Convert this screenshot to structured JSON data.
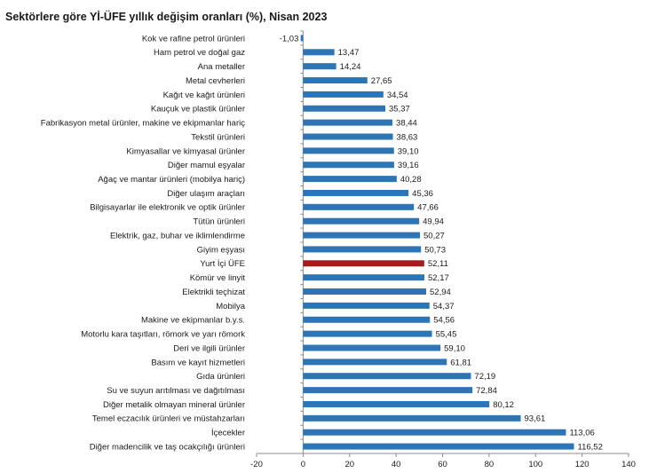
{
  "chart_data": {
    "type": "bar",
    "orientation": "horizontal",
    "title": "Sektörlere göre Yİ-ÜFE yıllık değişim oranları (%), Nisan 2023",
    "categories": [
      "Kok ve rafine petrol ürünleri",
      "Ham petrol ve doğal gaz",
      "Ana metaller",
      "Metal cevherleri",
      "Kağıt ve kağıt ürünleri",
      "Kauçuk ve plastik ürünler",
      "Fabrikasyon metal ürünler, makine ve ekipmanlar hariç",
      "Tekstil ürünleri",
      "Kimyasallar ve kimyasal ürünler",
      "Diğer mamul eşyalar",
      "Ağaç ve mantar ürünleri (mobilya hariç)",
      "Diğer ulaşım araçları",
      "Bilgisayarlar ile elektronik ve optik ürünler",
      "Tütün ürünleri",
      "Elektrik, gaz, buhar ve iklimlendirme",
      "Giyim eşyası",
      "Yurt İçi ÜFE",
      "Kömür ve linyit",
      "Elektrikli teçhizat",
      "Mobilya",
      "Makine ve ekipmanlar b.y.s.",
      "Motorlu kara taşıtları, römork ve yarı römork",
      "Deri ve ilgili ürünler",
      "Basım ve kayıt hizmetleri",
      "Gıda ürünleri",
      "Su ve suyun arıtılması ve dağıtılması",
      "Diğer metalik olmayan mineral ürünler",
      "Temel eczacılık ürünleri ve müstahzarları",
      "İçecekler",
      "Diğer madencilik ve taş ocakçılığı ürünleri"
    ],
    "values": [
      -1.03,
      13.47,
      14.24,
      27.65,
      34.54,
      35.37,
      38.44,
      38.63,
      39.1,
      39.16,
      40.28,
      45.36,
      47.66,
      49.94,
      50.27,
      50.73,
      52.11,
      52.17,
      52.94,
      54.37,
      54.56,
      55.45,
      59.1,
      61.81,
      72.19,
      72.84,
      80.12,
      93.61,
      113.06,
      116.52
    ],
    "value_labels": [
      "-1,03",
      "13,47",
      "14,24",
      "27,65",
      "34,54",
      "35,37",
      "38,44",
      "38,63",
      "39,10",
      "39,16",
      "40,28",
      "45,36",
      "47,66",
      "49,94",
      "50,27",
      "50,73",
      "52,11",
      "52,17",
      "52,94",
      "54,37",
      "54,56",
      "55,45",
      "59,10",
      "61,81",
      "72,19",
      "72,84",
      "80,12",
      "93,61",
      "113,06",
      "116,52"
    ],
    "xlim": [
      -20,
      140
    ],
    "xticks": [
      -20,
      0,
      20,
      40,
      60,
      80,
      100,
      120,
      140
    ],
    "highlight_index": 16,
    "colors": {
      "bar": "#2e75b6",
      "highlight": "#a51c1c",
      "axis": "#8c8c8c"
    },
    "grid": false,
    "legend": "none"
  }
}
